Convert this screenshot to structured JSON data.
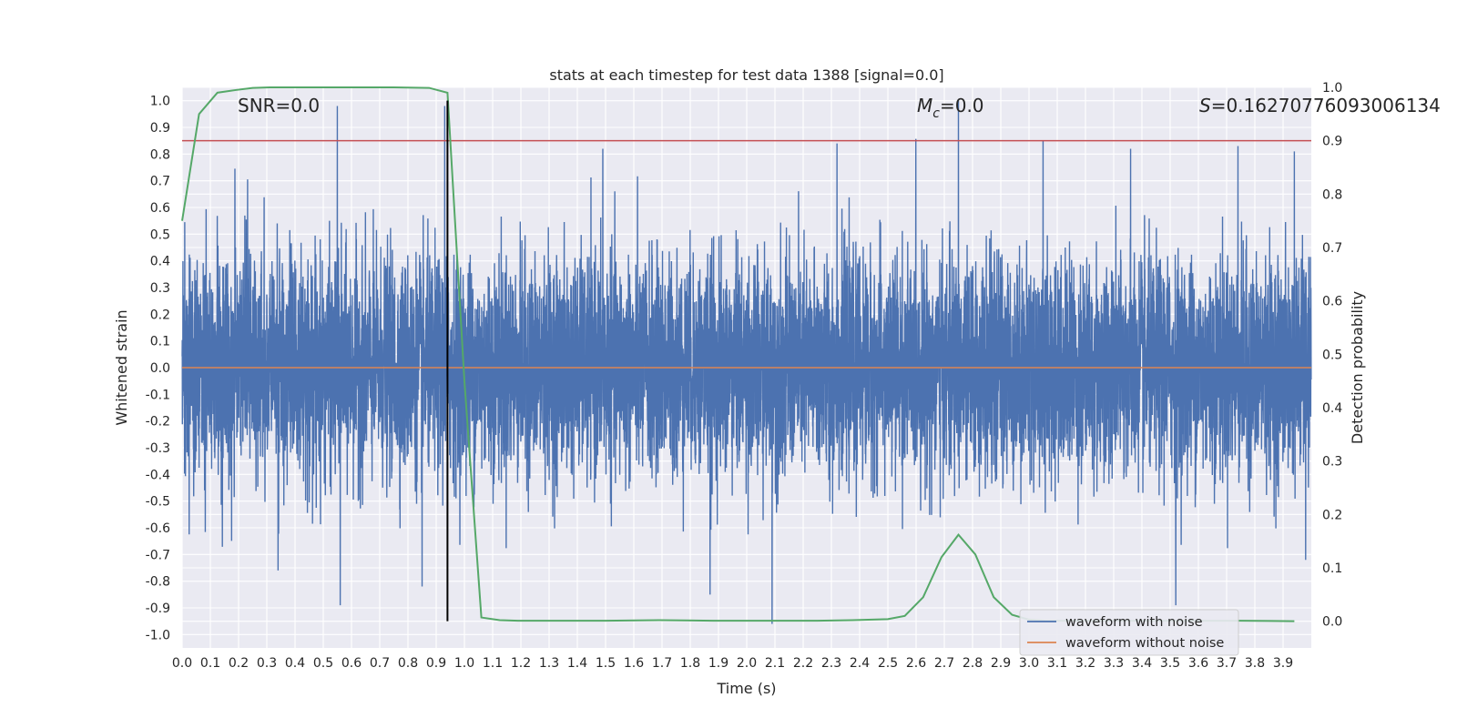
{
  "chart_data": {
    "type": "line",
    "title": "stats at each timestep for test data 1388 [signal=0.0]",
    "xlabel": "Time (s)",
    "ylabel_left": "Whitened strain",
    "ylabel_right": "Detection probability",
    "xlim": [
      0.0,
      4.0
    ],
    "ylim_left": [
      -1.05,
      1.05
    ],
    "ylim_right": [
      -0.05,
      1.0
    ],
    "x_ticks": [
      "0.0",
      "0.1",
      "0.2",
      "0.3",
      "0.4",
      "0.5",
      "0.6",
      "0.7",
      "0.8",
      "0.9",
      "1.0",
      "1.1",
      "1.2",
      "1.3",
      "1.4",
      "1.5",
      "1.6",
      "1.7",
      "1.8",
      "1.9",
      "2.0",
      "2.1",
      "2.2",
      "2.3",
      "2.4",
      "2.5",
      "2.6",
      "2.7",
      "2.8",
      "2.9",
      "3.0",
      "3.1",
      "3.2",
      "3.3",
      "3.4",
      "3.5",
      "3.6",
      "3.7",
      "3.8",
      "3.9"
    ],
    "y_ticks_left": [
      "1.0",
      "0.9",
      "0.8",
      "0.7",
      "0.6",
      "0.5",
      "0.4",
      "0.3",
      "0.2",
      "0.1",
      "0.0",
      "-0.1",
      "-0.2",
      "-0.3",
      "-0.4",
      "-0.5",
      "-0.6",
      "-0.7",
      "-0.8",
      "-0.9",
      "-1.0"
    ],
    "y_ticks_right": [
      "1.0",
      "0.9",
      "0.8",
      "0.7",
      "0.6",
      "0.5",
      "0.4",
      "0.3",
      "0.2",
      "0.1",
      "0.0"
    ],
    "grid": true,
    "legend_position": "bottom-right",
    "annotations": {
      "snr": "SNR=0.0",
      "mc_symbol": "M",
      "mc_sub": "c",
      "mc_value": "=0.0",
      "s_symbol": "S",
      "s_value": "=0.16270776093006134"
    },
    "threshold_line": {
      "axis": "right",
      "y": 0.9,
      "color": "#c44e52"
    },
    "marker_line": {
      "x": 0.94,
      "color": "#000000"
    },
    "series": [
      {
        "name": "waveform with noise",
        "color": "#4c72b0",
        "kind": "noise",
        "duration_s": 4.0,
        "sample_rate_hz": 2048,
        "typical_amplitude": 0.2,
        "approx_min": -0.96,
        "approx_max": 1.0,
        "peaks": [
          {
            "x": 0.55,
            "y": 0.98
          },
          {
            "x": 0.93,
            "y": 0.98
          },
          {
            "x": 1.49,
            "y": 0.82
          },
          {
            "x": 2.32,
            "y": 0.84
          },
          {
            "x": 2.75,
            "y": 1.0
          },
          {
            "x": 3.05,
            "y": 0.85
          },
          {
            "x": 3.36,
            "y": 0.82
          },
          {
            "x": 3.74,
            "y": 0.83
          },
          {
            "x": 3.94,
            "y": 0.81
          },
          {
            "x": 0.56,
            "y": -0.89
          },
          {
            "x": 2.09,
            "y": -0.96
          },
          {
            "x": 3.52,
            "y": -0.89
          },
          {
            "x": 1.87,
            "y": -0.85
          },
          {
            "x": 0.34,
            "y": -0.76
          },
          {
            "x": 0.85,
            "y": -0.82
          },
          {
            "x": 3.98,
            "y": -0.72
          }
        ]
      },
      {
        "name": "waveform without noise",
        "color": "#dd8452",
        "x": [
          0.0,
          4.0
        ],
        "y": [
          0.0,
          0.0
        ]
      },
      {
        "name": "",
        "color": "#55a868",
        "axis": "right",
        "x": [
          0.0,
          0.06,
          0.125,
          0.19,
          0.25,
          0.31,
          0.375,
          0.5,
          0.625,
          0.75,
          0.875,
          0.94,
          1.0,
          1.06,
          1.125,
          1.19,
          1.25,
          1.5,
          1.69,
          1.88,
          2.06,
          2.25,
          2.375,
          2.5,
          2.56,
          2.625,
          2.69,
          2.75,
          2.81,
          2.875,
          2.94,
          3.0,
          3.06,
          3.125,
          3.25,
          3.5,
          3.75,
          3.94
        ],
        "y": [
          0.75,
          0.95,
          0.99,
          0.995,
          0.999,
          1.0,
          1.0,
          1.0,
          1.0,
          1.0,
          0.999,
          0.99,
          0.45,
          0.007,
          0.002,
          0.001,
          0.001,
          0.001,
          0.002,
          0.001,
          0.001,
          0.001,
          0.002,
          0.004,
          0.01,
          0.045,
          0.12,
          0.162,
          0.125,
          0.045,
          0.012,
          0.003,
          0.001,
          0.001,
          0.001,
          0.001,
          0.001,
          0.0
        ]
      }
    ]
  }
}
